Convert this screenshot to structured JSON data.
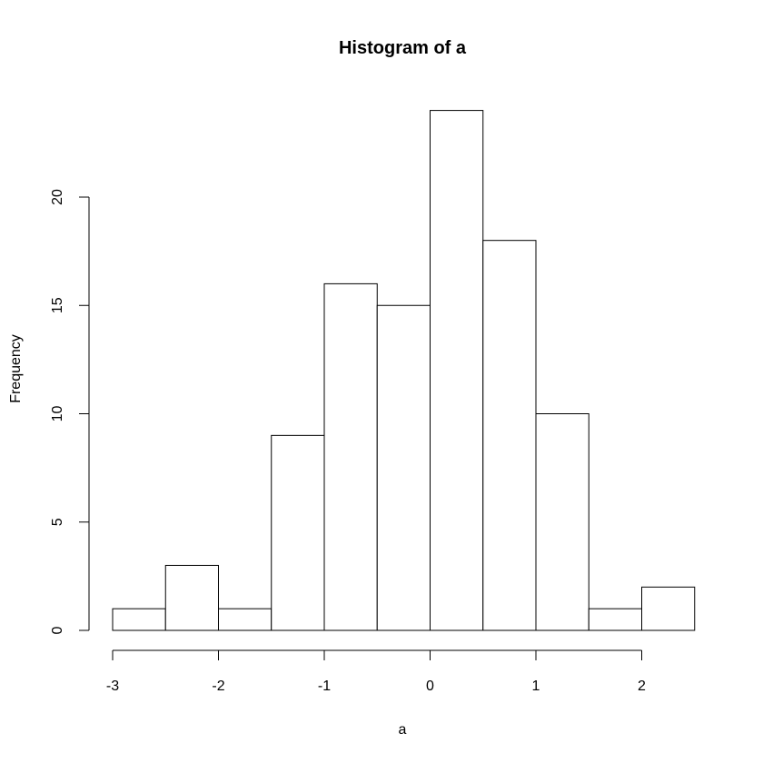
{
  "chart_data": {
    "type": "bar",
    "title": "Histogram of a",
    "xlabel": "a",
    "ylabel": "Frequency",
    "bins": [
      {
        "start": -3.0,
        "end": -2.5,
        "count": 1
      },
      {
        "start": -2.5,
        "end": -2.0,
        "count": 3
      },
      {
        "start": -2.0,
        "end": -1.5,
        "count": 1
      },
      {
        "start": -1.5,
        "end": -1.0,
        "count": 9
      },
      {
        "start": -1.0,
        "end": -0.5,
        "count": 16
      },
      {
        "start": -0.5,
        "end": 0.0,
        "count": 15
      },
      {
        "start": 0.0,
        "end": 0.5,
        "count": 24
      },
      {
        "start": 0.5,
        "end": 1.0,
        "count": 18
      },
      {
        "start": 1.0,
        "end": 1.5,
        "count": 10
      },
      {
        "start": 1.5,
        "end": 2.0,
        "count": 1
      },
      {
        "start": 2.0,
        "end": 2.5,
        "count": 2
      }
    ],
    "xticks": [
      -3,
      -2,
      -1,
      0,
      1,
      2
    ],
    "xtick_labels": [
      "-3",
      "-2",
      "-1",
      "0",
      "1",
      "2"
    ],
    "yticks": [
      0,
      5,
      10,
      15,
      20
    ],
    "ytick_labels": [
      "0",
      "5",
      "10",
      "15",
      "20"
    ],
    "xlim": [
      -3,
      2.5
    ],
    "ylim": [
      0,
      24
    ],
    "grid": false
  }
}
